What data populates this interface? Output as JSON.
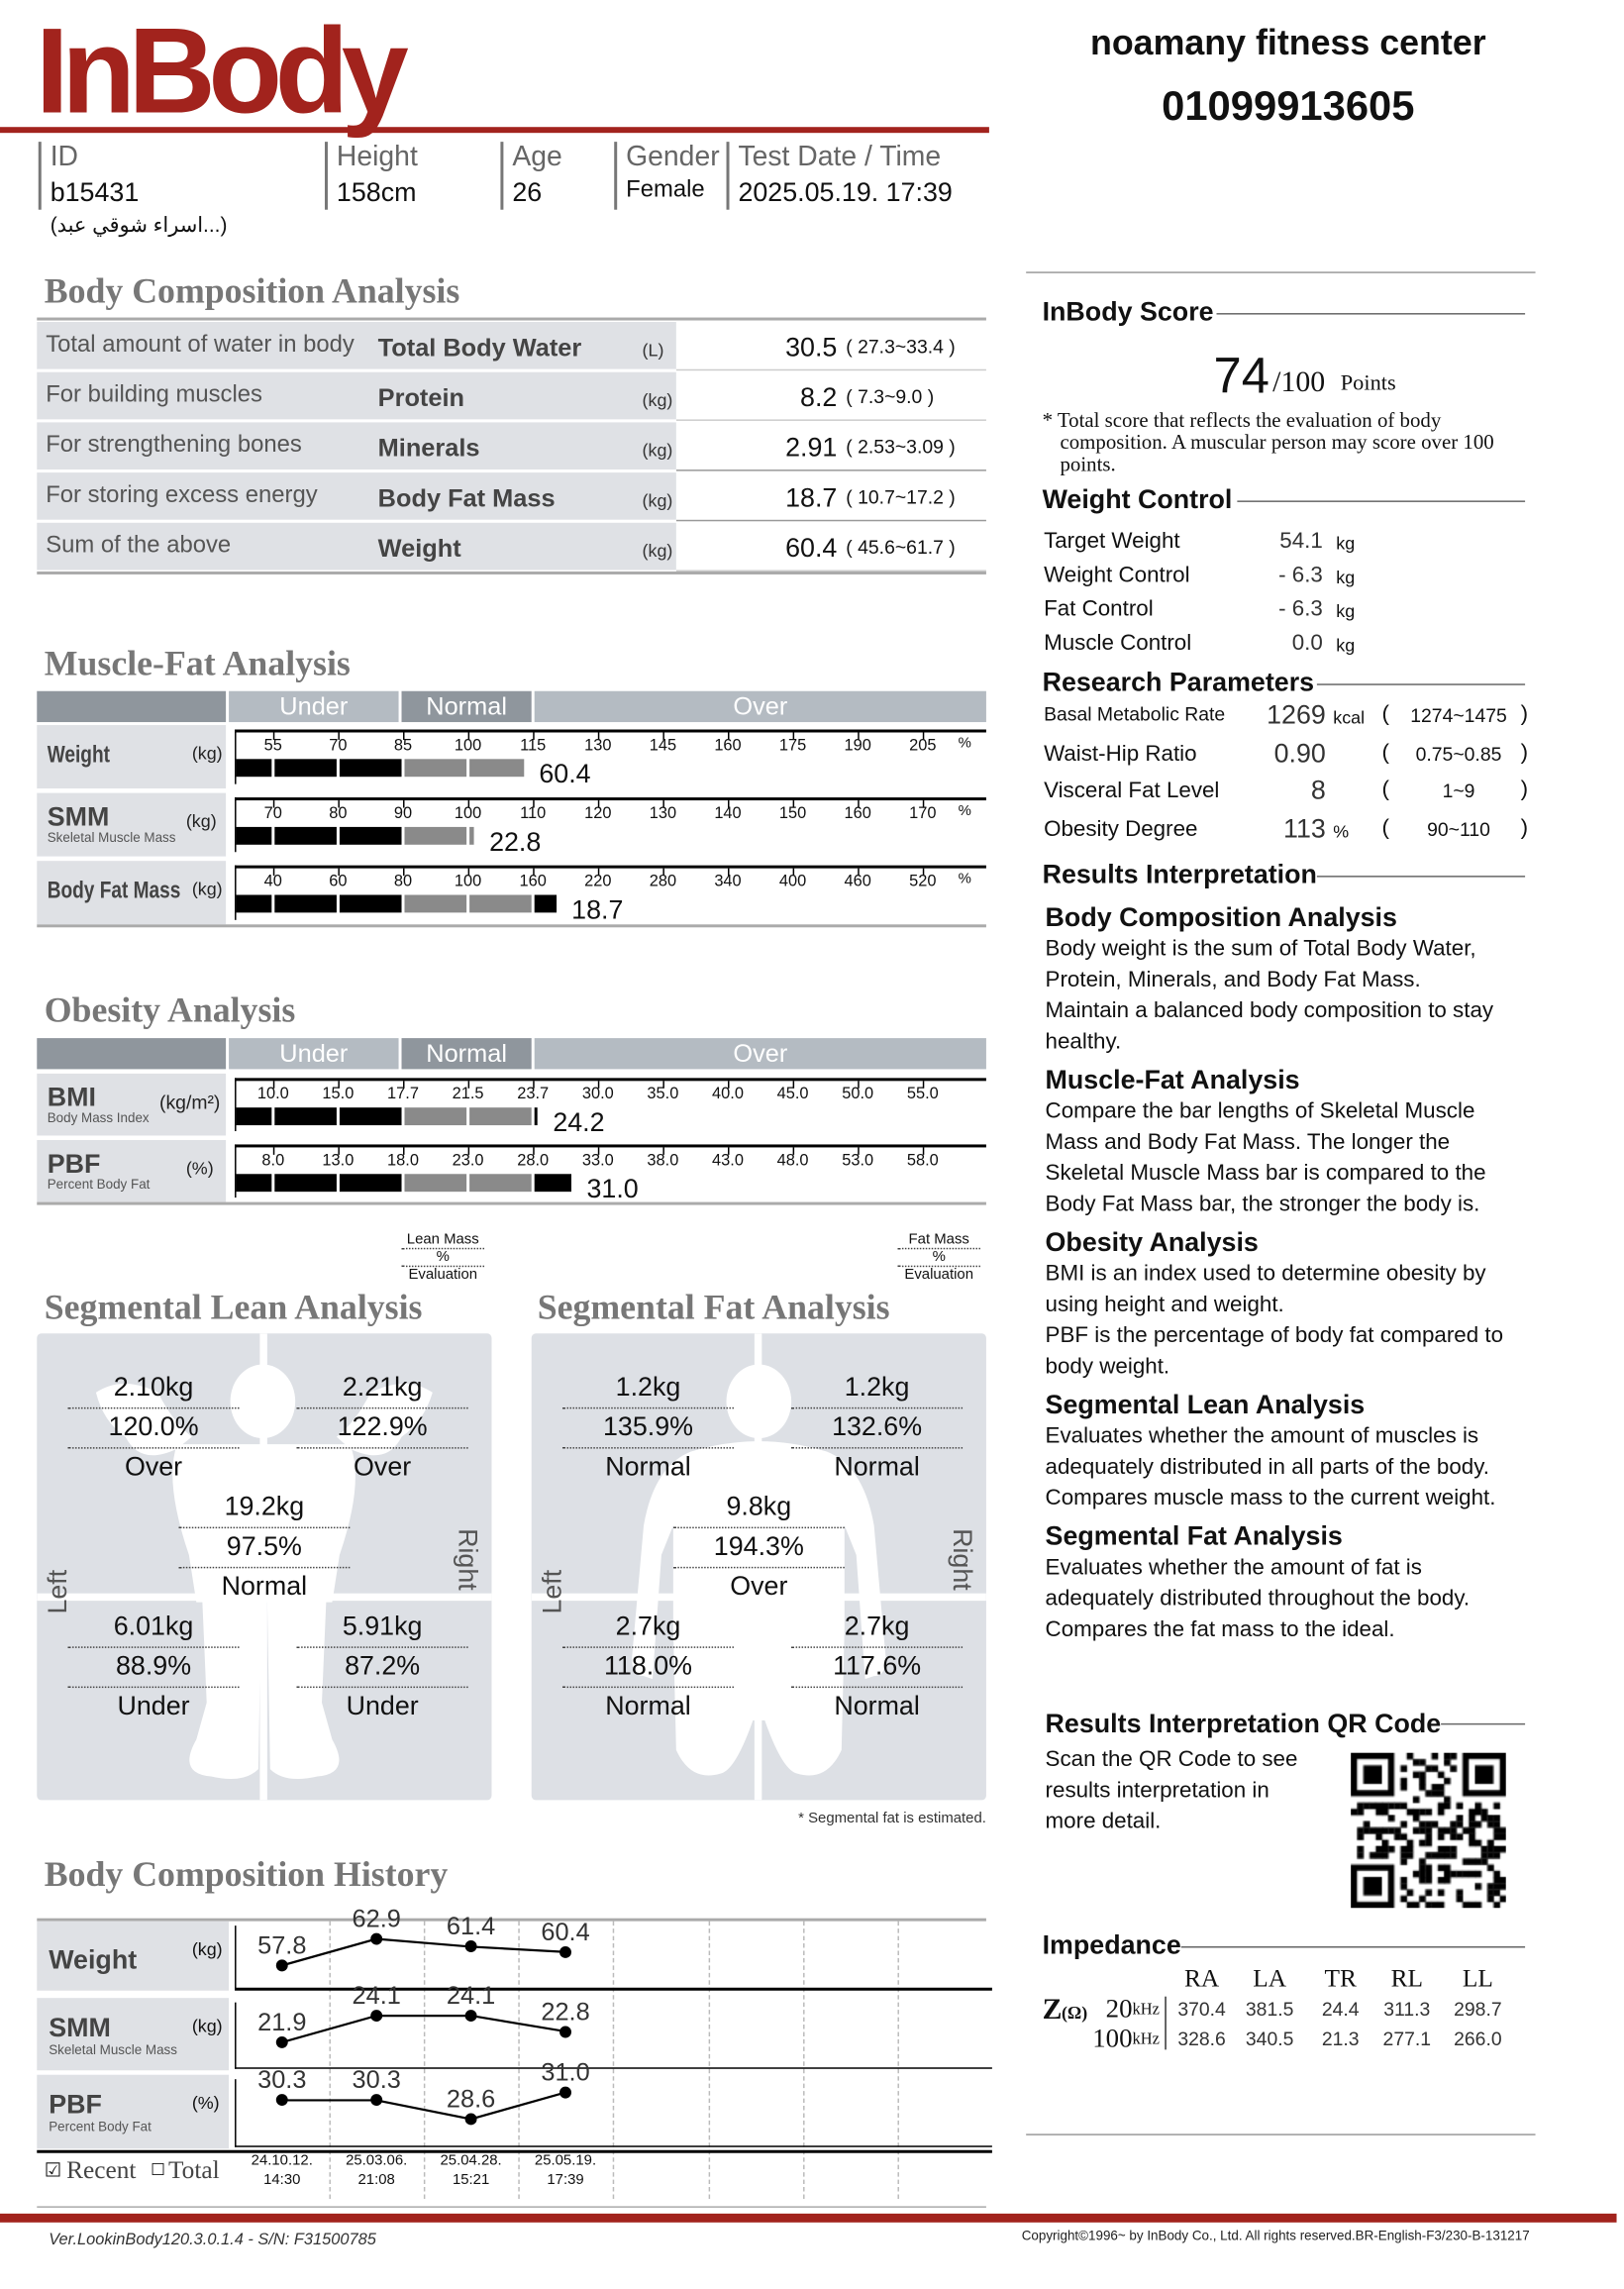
{
  "brand": {
    "logo": "InBody",
    "center_name": "noamany fitness center",
    "center_phone": "01099913605",
    "accent_color": "#a2231d"
  },
  "info": {
    "id_label": "ID",
    "id": "b15431",
    "name": "(اسراء شوقي عبد...)",
    "height_label": "Height",
    "height": "158cm",
    "age_label": "Age",
    "age": "26",
    "gender_label": "Gender",
    "gender": "Female",
    "date_label": "Test Date / Time",
    "date": "2025.05.19. 17:39"
  },
  "bca": {
    "title": "Body Composition Analysis",
    "rows": [
      {
        "desc": "Total amount of water in body",
        "name": "Total Body Water",
        "unit": "(L)",
        "value": "30.5",
        "range": "(   27.3~33.4    )"
      },
      {
        "desc": "For building muscles",
        "name": "Protein",
        "unit": "(kg)",
        "value": "8.2",
        "range": "(     7.3~9.0      )"
      },
      {
        "desc": "For strengthening bones",
        "name": "Minerals",
        "unit": "(kg)",
        "value": "2.91",
        "range": "(   2.53~3.09    )"
      },
      {
        "desc": "For storing excess energy",
        "name": "Body Fat Mass",
        "unit": "(kg)",
        "value": "18.7",
        "range": "(   10.7~17.2    )"
      },
      {
        "desc": "Sum of the above",
        "name": "Weight",
        "unit": "(kg)",
        "value": "60.4",
        "range": "(   45.6~61.7    )"
      }
    ]
  },
  "scale_headers": {
    "under": "Under",
    "normal": "Normal",
    "over": "Over"
  },
  "mfa": {
    "title": "Muscle-Fat Analysis",
    "rows": [
      {
        "name": "Weight",
        "sub": "",
        "unit": "(kg)",
        "ticks": [
          "55",
          "70",
          "85",
          "100",
          "115",
          "130",
          "145",
          "160",
          "175",
          "190",
          "205"
        ],
        "pct": "%",
        "level": 113,
        "value": "60.4"
      },
      {
        "name": "SMM",
        "sub": "Skeletal Muscle Mass",
        "unit": "(kg)",
        "ticks": [
          "70",
          "80",
          "90",
          "100",
          "110",
          "120",
          "130",
          "140",
          "150",
          "160",
          "170"
        ],
        "pct": "%",
        "level": 101,
        "value": "22.8"
      },
      {
        "name": "Body Fat Mass",
        "sub": "",
        "unit": "(kg)",
        "ticks": [
          "40",
          "60",
          "80",
          "100",
          "160",
          "220",
          "280",
          "340",
          "400",
          "460",
          "520"
        ],
        "pct": "%",
        "level": 182,
        "value": "18.7"
      }
    ]
  },
  "oa": {
    "title": "Obesity Analysis",
    "rows": [
      {
        "name": "BMI",
        "sub": "Body Mass Index",
        "unit": "(kg/m²)",
        "ticks": [
          "10.0",
          "15.0",
          "17.7",
          "21.5",
          "23.7",
          "30.0",
          "35.0",
          "40.0",
          "45.0",
          "50.0",
          "55.0"
        ],
        "pct": "",
        "level": 24.2,
        "value": "24.2"
      },
      {
        "name": "PBF",
        "sub": "Percent Body Fat",
        "unit": "(%)",
        "ticks": [
          "8.0",
          "13.0",
          "18.0",
          "23.0",
          "28.0",
          "33.0",
          "38.0",
          "43.0",
          "48.0",
          "53.0",
          "58.0"
        ],
        "pct": "",
        "level": 31.0,
        "value": "31.0"
      }
    ]
  },
  "segmental": {
    "lean_title": "Segmental Lean Analysis",
    "fat_title": "Segmental Fat Analysis",
    "lean_legend": [
      "Lean Mass",
      "%",
      "Evaluation"
    ],
    "fat_legend": [
      "Fat Mass",
      "%",
      "Evaluation"
    ],
    "left": "Left",
    "right": "Right",
    "lean": {
      "left_arm": [
        "2.10kg",
        "120.0%",
        "Over"
      ],
      "right_arm": [
        "2.21kg",
        "122.9%",
        "Over"
      ],
      "trunk": [
        "19.2kg",
        "97.5%",
        "Normal"
      ],
      "left_leg": [
        "6.01kg",
        "88.9%",
        "Under"
      ],
      "right_leg": [
        "5.91kg",
        "87.2%",
        "Under"
      ]
    },
    "fat": {
      "left_arm": [
        "1.2kg",
        "135.9%",
        "Normal"
      ],
      "right_arm": [
        "1.2kg",
        "132.6%",
        "Normal"
      ],
      "trunk": [
        "9.8kg",
        "194.3%",
        "Over"
      ],
      "left_leg": [
        "2.7kg",
        "118.0%",
        "Normal"
      ],
      "right_leg": [
        "2.7kg",
        "117.6%",
        "Normal"
      ]
    },
    "footnote": "* Segmental fat is estimated."
  },
  "history": {
    "title": "Body Composition History",
    "rows": [
      {
        "name": "Weight",
        "sub": "",
        "unit": "(kg)",
        "values": [
          "57.8",
          "62.9",
          "61.4",
          "60.4"
        ]
      },
      {
        "name": "SMM",
        "sub": "Skeletal Muscle Mass",
        "unit": "(kg)",
        "values": [
          "21.9",
          "24.1",
          "24.1",
          "22.8"
        ]
      },
      {
        "name": "PBF",
        "sub": "Percent Body Fat",
        "unit": "(%)",
        "values": [
          "30.3",
          "30.3",
          "28.6",
          "31.0"
        ]
      }
    ],
    "dates": [
      [
        "24.10.12.",
        "14:30"
      ],
      [
        "25.03.06.",
        "21:08"
      ],
      [
        "25.04.28.",
        "15:21"
      ],
      [
        "25.05.19.",
        "17:39"
      ]
    ],
    "recent_label": "Recent",
    "total_label": "Total",
    "recent_checked": true,
    "total_checked": false
  },
  "score": {
    "title": "InBody Score",
    "value": "74",
    "max": "/100",
    "points": "Points",
    "note": "* Total score that reflects the evaluation of body composition. A muscular person may score over 100 points."
  },
  "weight_control": {
    "title": "Weight Control",
    "rows": [
      {
        "label": "Target Weight",
        "value": "54.1",
        "unit": "kg"
      },
      {
        "label": "Weight Control",
        "value": "- 6.3",
        "unit": "kg"
      },
      {
        "label": "Fat Control",
        "value": "- 6.3",
        "unit": "kg"
      },
      {
        "label": "Muscle Control",
        "value": "0.0",
        "unit": "kg"
      }
    ]
  },
  "research": {
    "title": "Research Parameters",
    "rows": [
      {
        "label": "Basal Metabolic Rate",
        "value": "1269",
        "unit": "kcal",
        "range": "1274~1475"
      },
      {
        "label": "Waist-Hip Ratio",
        "value": "0.90",
        "unit": "",
        "range": "0.75~0.85"
      },
      {
        "label": "Visceral Fat Level",
        "value": "8",
        "unit": "",
        "range": "1~9"
      },
      {
        "label": "Obesity Degree",
        "value": "113",
        "unit": "%",
        "range": "90~110"
      }
    ]
  },
  "interpretation": {
    "title": "Results Interpretation",
    "sections": [
      {
        "h": "Body Composition Analysis",
        "p": [
          "Body weight is the sum of Total Body Water, Protein, Minerals, and Body Fat Mass.",
          "Maintain a balanced body composition to stay healthy."
        ]
      },
      {
        "h": "Muscle-Fat Analysis",
        "p": [
          "Compare the bar lengths of Skeletal Muscle Mass and Body Fat Mass. The longer the Skeletal Muscle Mass bar is compared to the Body Fat Mass bar, the stronger the body is."
        ]
      },
      {
        "h": "Obesity Analysis",
        "p": [
          "BMI is an index used to determine obesity by using height and weight.",
          "PBF is the percentage of body fat compared to body weight."
        ]
      },
      {
        "h": "Segmental Lean Analysis",
        "p": [
          "Evaluates whether the amount of muscles is adequately distributed in all parts of the body. Compares muscle mass to the current weight."
        ]
      },
      {
        "h": "Segmental Fat Analysis",
        "p": [
          "Evaluates whether the amount of fat is adequately distributed throughout the body. Compares the fat mass to the ideal."
        ]
      }
    ]
  },
  "qr": {
    "title": "Results Interpretation QR Code",
    "text": "Scan the QR Code to see results interpretation in more detail.",
    "icon": "qr-code-icon"
  },
  "impedance": {
    "title": "Impedance",
    "z_label": "Z",
    "ohm": "(Ω)",
    "headers": [
      "RA",
      "LA",
      "TR",
      "RL",
      "LL"
    ],
    "rows": [
      {
        "freq": "20",
        "unit": "kHz",
        "values": [
          "370.4",
          "381.5",
          "24.4",
          "311.3",
          "298.7"
        ]
      },
      {
        "freq": "100",
        "unit": "kHz",
        "values": [
          "328.6",
          "340.5",
          "21.3",
          "277.1",
          "266.0"
        ]
      }
    ]
  },
  "footer": {
    "version": "Ver.LookinBody120.3.0.1.4 - S/N: F31500785",
    "copyright": "Copyright©1996~ by InBody Co., Ltd. All rights reserved.BR-English-F3/230-B-131217"
  }
}
